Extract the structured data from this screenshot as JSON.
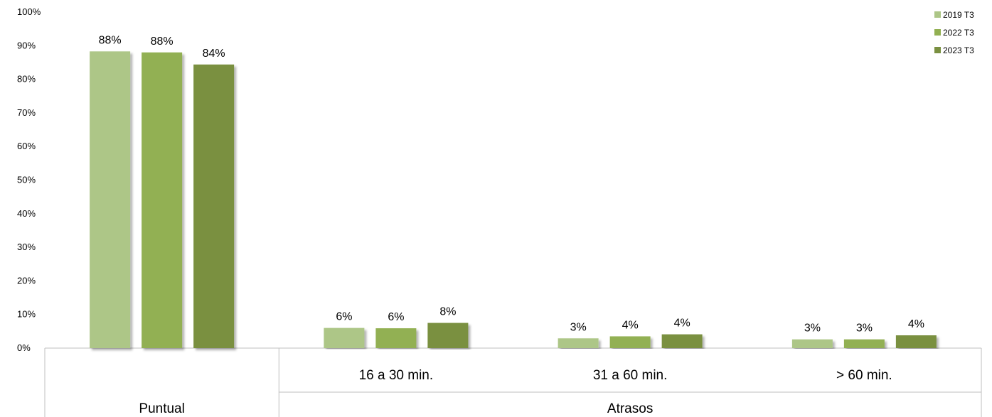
{
  "chart_data": {
    "type": "bar",
    "categories": [
      "Puntual",
      "16 a 30 min.",
      "31 a 60 min.",
      "> 60 min."
    ],
    "group_labels": [
      "Puntual",
      "Atrasos"
    ],
    "series": [
      {
        "name": "2019 T3",
        "values": [
          88.3,
          6.0,
          2.9,
          2.6
        ],
        "labels": [
          "88%",
          "6%",
          "3%",
          "3%"
        ],
        "color": "#adc687"
      },
      {
        "name": "2022 T3",
        "values": [
          88.0,
          5.9,
          3.5,
          2.6
        ],
        "labels": [
          "88%",
          "6%",
          "4%",
          "3%"
        ],
        "color": "#92b052"
      },
      {
        "name": "2023 T3",
        "values": [
          84.4,
          7.5,
          4.1,
          3.8
        ],
        "labels": [
          "84%",
          "8%",
          "4%",
          "4%"
        ],
        "color": "#7a9041"
      }
    ],
    "yticks": [
      "0%",
      "10%",
      "20%",
      "30%",
      "40%",
      "50%",
      "60%",
      "70%",
      "80%",
      "90%",
      "100%"
    ],
    "ylim": [
      0,
      100
    ],
    "legend_position": "top-right",
    "grid": false
  }
}
